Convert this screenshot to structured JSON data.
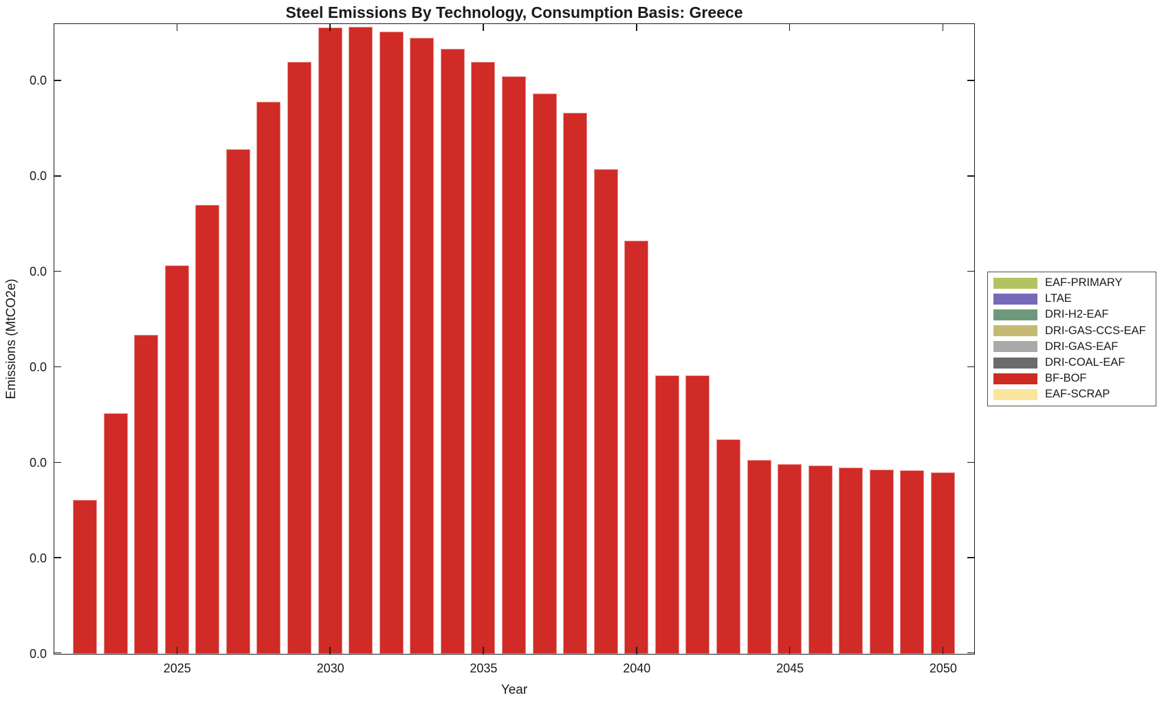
{
  "chart_data": {
    "type": "bar",
    "title": "Steel Emissions By Technology, Consumption Basis: Greece",
    "xlabel": "Year",
    "ylabel": "Emissions (MtCO2e)",
    "x": [
      2022,
      2023,
      2024,
      2025,
      2026,
      2027,
      2028,
      2029,
      2030,
      2031,
      2032,
      2033,
      2034,
      2035,
      2036,
      2037,
      2038,
      2039,
      2040,
      2041,
      2042,
      2043,
      2044,
      2045,
      2046,
      2047,
      2048,
      2049,
      2050
    ],
    "series": [
      {
        "name": "BF-BOF",
        "color": "#d02b26",
        "values": [
          1.61,
          2.52,
          3.34,
          4.07,
          4.7,
          5.29,
          5.78,
          6.2,
          6.56,
          6.57,
          6.52,
          6.45,
          6.34,
          6.2,
          6.05,
          5.87,
          5.67,
          5.08,
          4.33,
          2.92,
          2.92,
          2.25,
          2.03,
          1.99,
          1.97,
          1.95,
          1.93,
          1.92,
          1.9
        ]
      }
    ],
    "y_units_note": "values in y-axis tick units; every y tick label displays 0.0",
    "axes": {
      "xlim": [
        2021,
        2051
      ],
      "ylim": [
        0,
        6.59
      ],
      "yticks": [
        0,
        1,
        2,
        3,
        4,
        5,
        6
      ],
      "ytick_labels": [
        "0.0",
        "0.0",
        "0.0",
        "0.0",
        "0.0",
        "0.0",
        "0.0"
      ],
      "xticks": [
        2025,
        2030,
        2035,
        2040,
        2045,
        2050
      ],
      "xtick_labels": [
        "2025",
        "2030",
        "2035",
        "2040",
        "2045",
        "2050"
      ],
      "grid": false,
      "box": true,
      "tick_direction": "in"
    },
    "legend_position": "right-outside",
    "legend": [
      {
        "label": "EAF-PRIMARY",
        "color": "#b5c261"
      },
      {
        "label": "LTAE",
        "color": "#7569b9"
      },
      {
        "label": "DRI-H2-EAF",
        "color": "#6f987b"
      },
      {
        "label": "DRI-GAS-CCS-EAF",
        "color": "#c6ba72"
      },
      {
        "label": "DRI-GAS-EAF",
        "color": "#a9a9a9"
      },
      {
        "label": "DRI-COAL-EAF",
        "color": "#6b6b6b"
      },
      {
        "label": "BF-BOF",
        "color": "#cd2a24"
      },
      {
        "label": "EAF-SCRAP",
        "color": "#fbe49e"
      }
    ]
  }
}
